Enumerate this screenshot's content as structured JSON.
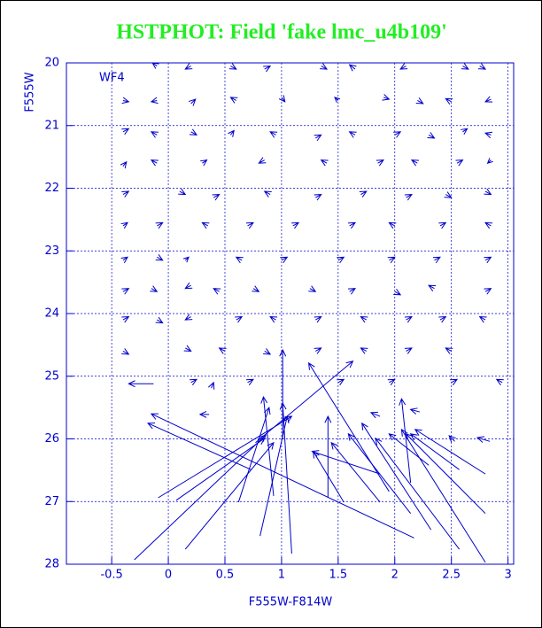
{
  "chart_data": {
    "type": "quiver",
    "title": "HSTPHOT: Field 'fake lmc_u4b109'",
    "annotation": "WF4",
    "x_label": "F555W-F814W",
    "y_label": "F555W",
    "color": "#0000cc",
    "title_color": "#22ee22",
    "grid": true,
    "xlim": [
      -0.9,
      3.05
    ],
    "ylim": [
      28,
      20
    ],
    "xticks": [
      -0.5,
      0,
      0.5,
      1,
      1.5,
      2,
      2.5,
      3
    ],
    "yticks": [
      20,
      21,
      22,
      23,
      24,
      25,
      26,
      27,
      28
    ],
    "arrows": [
      {
        "x": -0.3,
        "y": 27.93,
        "x_end": 0.86,
        "y_end": 25.94
      },
      {
        "x": 0.15,
        "y": 27.76,
        "x_end": 0.93,
        "y_end": 26.06
      },
      {
        "x": -0.09,
        "y": 26.94,
        "x_end": 1.09,
        "y_end": 25.64
      },
      {
        "x": 0.07,
        "y": 26.98,
        "x_end": 0.85,
        "y_end": 25.99
      },
      {
        "x": 0.62,
        "y": 27.01,
        "x_end": 0.89,
        "y_end": 25.5
      },
      {
        "x": 0.81,
        "y": 27.55,
        "x_end": 1.05,
        "y_end": 25.64
      },
      {
        "x": 1.09,
        "y": 27.83,
        "x_end": 1.01,
        "y_end": 25.43
      },
      {
        "x": 1.01,
        "y": 26.0,
        "x_end": 1.01,
        "y_end": 24.58
      },
      {
        "x": 2.17,
        "y": 27.58,
        "x_end": -0.15,
        "y_end": 25.6
      },
      {
        "x": 0.73,
        "y": 26.49,
        "x_end": -0.18,
        "y_end": 25.75
      },
      {
        "x": 1.41,
        "y": 26.94,
        "x_end": 1.41,
        "y_end": 25.64
      },
      {
        "x": 1.55,
        "y": 27.01,
        "x_end": 1.28,
        "y_end": 26.2
      },
      {
        "x": 1.87,
        "y": 27.01,
        "x_end": 1.44,
        "y_end": 26.06
      },
      {
        "x": 1.87,
        "y": 26.56,
        "x_end": 1.27,
        "y_end": 26.2
      },
      {
        "x": 2.14,
        "y": 27.19,
        "x_end": 1.59,
        "y_end": 25.92
      },
      {
        "x": 2.32,
        "y": 27.45,
        "x_end": 1.71,
        "y_end": 25.75
      },
      {
        "x": 2.57,
        "y": 27.76,
        "x_end": 1.83,
        "y_end": 25.99
      },
      {
        "x": 2.8,
        "y": 27.97,
        "x_end": 2.06,
        "y_end": 25.85
      },
      {
        "x": 2.8,
        "y": 27.19,
        "x_end": 2.1,
        "y_end": 25.92
      },
      {
        "x": 2.8,
        "y": 26.56,
        "x_end": 2.18,
        "y_end": 25.85
      },
      {
        "x": 2.57,
        "y": 26.49,
        "x_end": 2.14,
        "y_end": 25.92
      },
      {
        "x": 2.3,
        "y": 26.42,
        "x_end": 1.95,
        "y_end": 25.92
      },
      {
        "x": 2.14,
        "y": 26.7,
        "x_end": 2.06,
        "y_end": 25.36
      },
      {
        "x": 0.77,
        "y": 26.06,
        "x_end": 1.63,
        "y_end": 24.76
      },
      {
        "x": 1.95,
        "y": 26.84,
        "x_end": 1.24,
        "y_end": 24.79
      },
      {
        "x": 0.93,
        "y": 26.91,
        "x_end": 0.84,
        "y_end": 25.33
      },
      {
        "x": 2.84,
        "y": 26.04,
        "x_end": 2.73,
        "y_end": 25.98
      },
      {
        "x": 2.53,
        "y": 26.04,
        "x_end": 2.48,
        "y_end": 25.95
      },
      {
        "x": 1.87,
        "y": 25.64,
        "x_end": 1.79,
        "y_end": 25.58
      },
      {
        "x": 2.22,
        "y": 25.57,
        "x_end": 2.14,
        "y_end": 25.53
      },
      {
        "x": 0.36,
        "y": 25.61,
        "x_end": 0.28,
        "y_end": 25.61
      },
      {
        "x": -0.13,
        "y": 25.12,
        "x_end": -0.35,
        "y_end": 25.12
      },
      {
        "x": 0.38,
        "y": 25.19,
        "x_end": 0.4,
        "y_end": 25.1
      },
      {
        "x": -0.1,
        "y": 20.05,
        "x_end": -0.14,
        "y_end": 20.0
      },
      {
        "x": 0.2,
        "y": 20.05,
        "x_end": 0.15,
        "y_end": 20.1
      },
      {
        "x": 0.55,
        "y": 20.05,
        "x_end": 0.6,
        "y_end": 20.1
      },
      {
        "x": 0.85,
        "y": 20.1,
        "x_end": 0.9,
        "y_end": 20.05
      },
      {
        "x": 1.35,
        "y": 20.05,
        "x_end": 1.4,
        "y_end": 20.1
      },
      {
        "x": 1.65,
        "y": 20.1,
        "x_end": 1.6,
        "y_end": 20.03
      },
      {
        "x": 2.1,
        "y": 20.05,
        "x_end": 2.05,
        "y_end": 20.1
      },
      {
        "x": 2.6,
        "y": 20.05,
        "x_end": 2.65,
        "y_end": 20.1
      },
      {
        "x": 2.75,
        "y": 20.05,
        "x_end": 2.8,
        "y_end": 20.1
      },
      {
        "x": -0.4,
        "y": 20.6,
        "x_end": -0.35,
        "y_end": 20.62
      },
      {
        "x": -0.1,
        "y": 20.6,
        "x_end": -0.15,
        "y_end": 20.62
      },
      {
        "x": 0.2,
        "y": 20.65,
        "x_end": 0.24,
        "y_end": 20.58
      },
      {
        "x": 0.6,
        "y": 20.6,
        "x_end": 0.55,
        "y_end": 20.55
      },
      {
        "x": 1.0,
        "y": 20.55,
        "x_end": 1.03,
        "y_end": 20.62
      },
      {
        "x": 1.5,
        "y": 20.6,
        "x_end": 1.47,
        "y_end": 20.55
      },
      {
        "x": 1.9,
        "y": 20.55,
        "x_end": 1.95,
        "y_end": 20.58
      },
      {
        "x": 2.2,
        "y": 20.6,
        "x_end": 2.25,
        "y_end": 20.65
      },
      {
        "x": 2.5,
        "y": 20.62,
        "x_end": 2.45,
        "y_end": 20.57
      },
      {
        "x": 2.85,
        "y": 20.58,
        "x_end": 2.8,
        "y_end": 20.62
      },
      {
        "x": -0.4,
        "y": 21.1,
        "x_end": -0.35,
        "y_end": 21.05
      },
      {
        "x": -0.1,
        "y": 21.15,
        "x_end": -0.15,
        "y_end": 21.1
      },
      {
        "x": 0.2,
        "y": 21.1,
        "x_end": 0.25,
        "y_end": 21.15
      },
      {
        "x": 0.55,
        "y": 21.15,
        "x_end": 0.58,
        "y_end": 21.08
      },
      {
        "x": 0.95,
        "y": 21.15,
        "x_end": 0.9,
        "y_end": 21.1
      },
      {
        "x": 1.3,
        "y": 21.2,
        "x_end": 1.35,
        "y_end": 21.15
      },
      {
        "x": 1.65,
        "y": 21.15,
        "x_end": 1.6,
        "y_end": 21.1
      },
      {
        "x": 2.0,
        "y": 21.15,
        "x_end": 2.05,
        "y_end": 21.1
      },
      {
        "x": 2.3,
        "y": 21.15,
        "x_end": 2.35,
        "y_end": 21.2
      },
      {
        "x": 2.6,
        "y": 21.1,
        "x_end": 2.64,
        "y_end": 21.05
      },
      {
        "x": 2.85,
        "y": 21.15,
        "x_end": 2.8,
        "y_end": 21.12
      },
      {
        "x": -0.4,
        "y": 21.65,
        "x_end": -0.37,
        "y_end": 21.58
      },
      {
        "x": -0.1,
        "y": 21.6,
        "x_end": -0.15,
        "y_end": 21.55
      },
      {
        "x": 0.3,
        "y": 21.6,
        "x_end": 0.34,
        "y_end": 21.55
      },
      {
        "x": 0.85,
        "y": 21.55,
        "x_end": 0.8,
        "y_end": 21.6
      },
      {
        "x": 1.4,
        "y": 21.6,
        "x_end": 1.35,
        "y_end": 21.55
      },
      {
        "x": 1.85,
        "y": 21.6,
        "x_end": 1.9,
        "y_end": 21.55
      },
      {
        "x": 2.2,
        "y": 21.6,
        "x_end": 2.15,
        "y_end": 21.55
      },
      {
        "x": 2.55,
        "y": 21.6,
        "x_end": 2.6,
        "y_end": 21.55
      },
      {
        "x": 2.85,
        "y": 21.55,
        "x_end": 2.82,
        "y_end": 21.6
      },
      {
        "x": -0.4,
        "y": 22.1,
        "x_end": -0.35,
        "y_end": 22.05
      },
      {
        "x": 0.1,
        "y": 22.05,
        "x_end": 0.15,
        "y_end": 22.1
      },
      {
        "x": 0.4,
        "y": 22.15,
        "x_end": 0.45,
        "y_end": 22.1
      },
      {
        "x": 0.9,
        "y": 22.1,
        "x_end": 0.85,
        "y_end": 22.05
      },
      {
        "x": 1.3,
        "y": 22.15,
        "x_end": 1.35,
        "y_end": 22.1
      },
      {
        "x": 1.7,
        "y": 22.1,
        "x_end": 1.75,
        "y_end": 22.05
      },
      {
        "x": 2.1,
        "y": 22.15,
        "x_end": 2.15,
        "y_end": 22.1
      },
      {
        "x": 2.45,
        "y": 22.1,
        "x_end": 2.5,
        "y_end": 22.15
      },
      {
        "x": 2.8,
        "y": 22.05,
        "x_end": 2.85,
        "y_end": 22.1
      },
      {
        "x": -0.4,
        "y": 22.6,
        "x_end": -0.36,
        "y_end": 22.55
      },
      {
        "x": -0.1,
        "y": 22.6,
        "x_end": -0.05,
        "y_end": 22.55
      },
      {
        "x": 0.35,
        "y": 22.6,
        "x_end": 0.3,
        "y_end": 22.55
      },
      {
        "x": 0.7,
        "y": 22.6,
        "x_end": 0.75,
        "y_end": 22.55
      },
      {
        "x": 1.1,
        "y": 22.6,
        "x_end": 1.15,
        "y_end": 22.55
      },
      {
        "x": 1.6,
        "y": 22.6,
        "x_end": 1.65,
        "y_end": 22.55
      },
      {
        "x": 2.0,
        "y": 22.6,
        "x_end": 1.95,
        "y_end": 22.55
      },
      {
        "x": 2.4,
        "y": 22.6,
        "x_end": 2.45,
        "y_end": 22.55
      },
      {
        "x": 2.85,
        "y": 22.6,
        "x_end": 2.8,
        "y_end": 22.55
      },
      {
        "x": -0.4,
        "y": 23.15,
        "x_end": -0.36,
        "y_end": 23.1
      },
      {
        "x": -0.1,
        "y": 23.1,
        "x_end": -0.05,
        "y_end": 23.15
      },
      {
        "x": 0.15,
        "y": 23.15,
        "x_end": 0.18,
        "y_end": 23.1
      },
      {
        "x": 0.65,
        "y": 23.15,
        "x_end": 0.6,
        "y_end": 23.1
      },
      {
        "x": 1.0,
        "y": 23.15,
        "x_end": 1.05,
        "y_end": 23.1
      },
      {
        "x": 1.5,
        "y": 23.15,
        "x_end": 1.55,
        "y_end": 23.1
      },
      {
        "x": 1.95,
        "y": 23.15,
        "x_end": 2.0,
        "y_end": 23.1
      },
      {
        "x": 2.35,
        "y": 23.15,
        "x_end": 2.4,
        "y_end": 23.1
      },
      {
        "x": 2.8,
        "y": 23.15,
        "x_end": 2.85,
        "y_end": 23.1
      },
      {
        "x": -0.4,
        "y": 23.65,
        "x_end": -0.35,
        "y_end": 23.6
      },
      {
        "x": -0.15,
        "y": 23.6,
        "x_end": -0.1,
        "y_end": 23.65
      },
      {
        "x": 0.2,
        "y": 23.55,
        "x_end": 0.15,
        "y_end": 23.6
      },
      {
        "x": 0.45,
        "y": 23.65,
        "x_end": 0.4,
        "y_end": 23.6
      },
      {
        "x": 0.75,
        "y": 23.6,
        "x_end": 0.8,
        "y_end": 23.65
      },
      {
        "x": 1.25,
        "y": 23.6,
        "x_end": 1.3,
        "y_end": 23.65
      },
      {
        "x": 1.6,
        "y": 23.65,
        "x_end": 1.65,
        "y_end": 23.6
      },
      {
        "x": 2.0,
        "y": 23.65,
        "x_end": 2.05,
        "y_end": 23.7
      },
      {
        "x": 2.35,
        "y": 23.6,
        "x_end": 2.3,
        "y_end": 23.55
      },
      {
        "x": 2.8,
        "y": 23.65,
        "x_end": 2.85,
        "y_end": 23.6
      },
      {
        "x": -0.4,
        "y": 24.1,
        "x_end": -0.35,
        "y_end": 24.05
      },
      {
        "x": -0.1,
        "y": 24.1,
        "x_end": -0.05,
        "y_end": 24.15
      },
      {
        "x": 0.2,
        "y": 24.05,
        "x_end": 0.15,
        "y_end": 24.1
      },
      {
        "x": 0.6,
        "y": 24.1,
        "x_end": 0.65,
        "y_end": 24.05
      },
      {
        "x": 0.95,
        "y": 24.1,
        "x_end": 0.9,
        "y_end": 24.05
      },
      {
        "x": 1.3,
        "y": 24.1,
        "x_end": 1.35,
        "y_end": 24.05
      },
      {
        "x": 1.75,
        "y": 24.1,
        "x_end": 1.7,
        "y_end": 24.05
      },
      {
        "x": 2.1,
        "y": 24.1,
        "x_end": 2.15,
        "y_end": 24.05
      },
      {
        "x": 2.4,
        "y": 24.1,
        "x_end": 2.45,
        "y_end": 24.05
      },
      {
        "x": 2.8,
        "y": 24.1,
        "x_end": 2.75,
        "y_end": 24.05
      },
      {
        "x": -0.4,
        "y": 24.6,
        "x_end": -0.35,
        "y_end": 24.65
      },
      {
        "x": 0.15,
        "y": 24.55,
        "x_end": 0.2,
        "y_end": 24.6
      },
      {
        "x": 0.5,
        "y": 24.6,
        "x_end": 0.45,
        "y_end": 24.55
      },
      {
        "x": 0.85,
        "y": 24.6,
        "x_end": 0.9,
        "y_end": 24.65
      },
      {
        "x": 1.3,
        "y": 24.6,
        "x_end": 1.35,
        "y_end": 24.55
      },
      {
        "x": 1.75,
        "y": 24.6,
        "x_end": 1.7,
        "y_end": 24.55
      },
      {
        "x": 2.1,
        "y": 24.6,
        "x_end": 2.15,
        "y_end": 24.55
      },
      {
        "x": 2.5,
        "y": 24.6,
        "x_end": 2.45,
        "y_end": 24.55
      },
      {
        "x": 0.2,
        "y": 25.1,
        "x_end": 0.25,
        "y_end": 25.05
      },
      {
        "x": 0.7,
        "y": 25.1,
        "x_end": 0.75,
        "y_end": 25.05
      },
      {
        "x": 1.5,
        "y": 25.1,
        "x_end": 1.55,
        "y_end": 25.05
      },
      {
        "x": 1.95,
        "y": 25.1,
        "x_end": 2.0,
        "y_end": 25.05
      },
      {
        "x": 2.5,
        "y": 25.1,
        "x_end": 2.55,
        "y_end": 25.05
      },
      {
        "x": 2.95,
        "y": 25.1,
        "x_end": 2.9,
        "y_end": 25.05
      }
    ]
  }
}
